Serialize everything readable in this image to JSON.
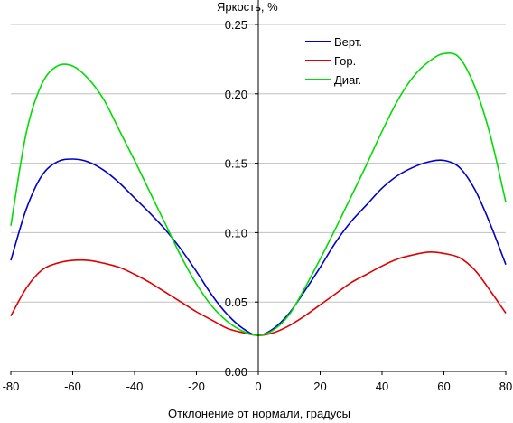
{
  "chart_data": {
    "type": "line",
    "title": "",
    "xlabel": "Отклонение от нормали, градусы",
    "ylabel": "Яркость, %",
    "xlim": [
      -80,
      80
    ],
    "ylim": [
      0,
      0.25
    ],
    "xticks": [
      -80,
      -60,
      -40,
      -20,
      0,
      20,
      40,
      60,
      80
    ],
    "xtick_labels": [
      "-80",
      "-60",
      "-40",
      "-20",
      "0",
      "20",
      "40",
      "60",
      "80"
    ],
    "yticks": [
      0,
      0.05,
      0.1,
      0.15,
      0.2,
      0.25
    ],
    "ytick_labels": [
      "0.00",
      "0.05",
      "0.10",
      "0.15",
      "0.20",
      "0.25"
    ],
    "grid": "horizontal",
    "legend_position": "top-right",
    "series": [
      {
        "name": "Верт.",
        "color": "#0000c8",
        "x": [
          -80,
          -75,
          -70,
          -65,
          -60,
          -55,
          -50,
          -45,
          -40,
          -35,
          -30,
          -25,
          -20,
          -15,
          -10,
          -5,
          0,
          5,
          10,
          15,
          20,
          25,
          30,
          35,
          40,
          45,
          50,
          55,
          60,
          65,
          70,
          75,
          80
        ],
        "y": [
          0.08,
          0.117,
          0.141,
          0.151,
          0.153,
          0.151,
          0.145,
          0.136,
          0.125,
          0.114,
          0.102,
          0.088,
          0.072,
          0.055,
          0.041,
          0.031,
          0.026,
          0.031,
          0.042,
          0.058,
          0.075,
          0.093,
          0.108,
          0.12,
          0.132,
          0.141,
          0.147,
          0.151,
          0.152,
          0.147,
          0.131,
          0.106,
          0.077
        ]
      },
      {
        "name": "Гор.",
        "color": "#e00000",
        "x": [
          -80,
          -75,
          -70,
          -65,
          -60,
          -55,
          -50,
          -45,
          -40,
          -35,
          -30,
          -25,
          -20,
          -15,
          -10,
          -5,
          0,
          5,
          10,
          15,
          20,
          25,
          30,
          35,
          40,
          45,
          50,
          55,
          60,
          65,
          70,
          75,
          80
        ],
        "y": [
          0.04,
          0.06,
          0.073,
          0.078,
          0.08,
          0.08,
          0.078,
          0.075,
          0.07,
          0.064,
          0.057,
          0.05,
          0.043,
          0.037,
          0.031,
          0.028,
          0.026,
          0.028,
          0.033,
          0.04,
          0.048,
          0.056,
          0.064,
          0.07,
          0.076,
          0.081,
          0.084,
          0.086,
          0.085,
          0.082,
          0.073,
          0.058,
          0.042
        ]
      },
      {
        "name": "Диаг.",
        "color": "#00dd00",
        "x": [
          -80,
          -75,
          -70,
          -65,
          -60,
          -55,
          -50,
          -45,
          -40,
          -35,
          -30,
          -25,
          -20,
          -15,
          -10,
          -5,
          0,
          5,
          10,
          15,
          20,
          25,
          30,
          35,
          40,
          45,
          50,
          55,
          60,
          65,
          70,
          75,
          80
        ],
        "y": [
          0.105,
          0.172,
          0.207,
          0.22,
          0.22,
          0.211,
          0.196,
          0.174,
          0.152,
          0.129,
          0.106,
          0.083,
          0.063,
          0.047,
          0.036,
          0.029,
          0.026,
          0.03,
          0.041,
          0.06,
          0.081,
          0.103,
          0.126,
          0.149,
          0.173,
          0.195,
          0.212,
          0.223,
          0.229,
          0.226,
          0.205,
          0.17,
          0.122
        ]
      }
    ]
  }
}
